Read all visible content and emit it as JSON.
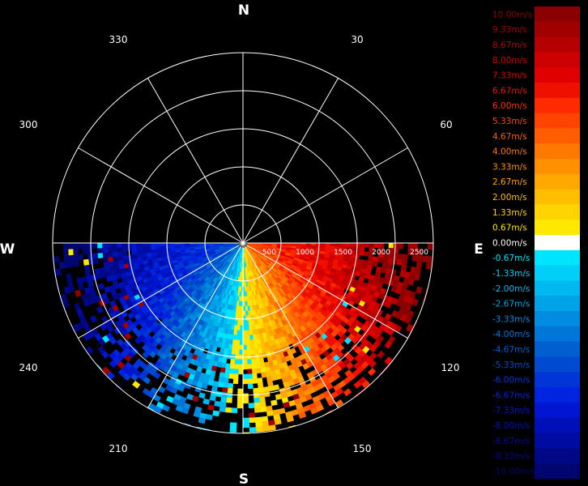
{
  "chart_data": {
    "type": "heatmap",
    "subtype": "polar radial-wind velocity display",
    "compass": {
      "north": "N",
      "south": "S",
      "east": "E",
      "west": "W"
    },
    "azimuth_labels": [
      "30",
      "60",
      "120",
      "150",
      "210",
      "240",
      "300",
      "330"
    ],
    "range_labels": [
      "500",
      "1000",
      "1500",
      "2000",
      "2500"
    ],
    "range_rings": [
      500,
      1000,
      1500,
      2000,
      2500
    ],
    "max_range": 2500,
    "spoke_step_deg": 30,
    "data_sector_deg": [
      90,
      270
    ],
    "velocity_range": [
      -10,
      10
    ],
    "description_sign": "positive toward east/south-east sector, negative toward west/south-west sector",
    "colorbar": [
      {
        "label": "10.00m/s",
        "value": 10.0,
        "color": "#8b0000"
      },
      {
        "label": "9.33m/s",
        "value": 9.33,
        "color": "#a00000"
      },
      {
        "label": "8.67m/s",
        "value": 8.67,
        "color": "#b50000"
      },
      {
        "label": "8.00m/s",
        "value": 8.0,
        "color": "#cc0000"
      },
      {
        "label": "7.33m/s",
        "value": 7.33,
        "color": "#e00000"
      },
      {
        "label": "6.67m/s",
        "value": 6.67,
        "color": "#f01000"
      },
      {
        "label": "6.00m/s",
        "value": 6.0,
        "color": "#ff2a00"
      },
      {
        "label": "5.33m/s",
        "value": 5.33,
        "color": "#ff4400"
      },
      {
        "label": "4.67m/s",
        "value": 4.67,
        "color": "#ff5e00"
      },
      {
        "label": "4.00m/s",
        "value": 4.0,
        "color": "#ff7800"
      },
      {
        "label": "3.33m/s",
        "value": 3.33,
        "color": "#ff9000"
      },
      {
        "label": "2.67m/s",
        "value": 2.67,
        "color": "#ffa800"
      },
      {
        "label": "2.00m/s",
        "value": 2.0,
        "color": "#ffbe00"
      },
      {
        "label": "1.33m/s",
        "value": 1.33,
        "color": "#ffd400"
      },
      {
        "label": "0.67m/s",
        "value": 0.67,
        "color": "#ffe800"
      },
      {
        "label": "0.00m/s",
        "value": 0.0,
        "color": "#ffffff"
      },
      {
        "label": "-0.67m/s",
        "value": -0.67,
        "color": "#00e5ff"
      },
      {
        "label": "-1.33m/s",
        "value": -1.33,
        "color": "#00d0f8"
      },
      {
        "label": "-2.00m/s",
        "value": -2.0,
        "color": "#00b8f0"
      },
      {
        "label": "-2.67m/s",
        "value": -2.67,
        "color": "#00a2e8"
      },
      {
        "label": "-3.33m/s",
        "value": -3.33,
        "color": "#008ce0"
      },
      {
        "label": "-4.00m/s",
        "value": -4.0,
        "color": "#0076d8"
      },
      {
        "label": "-4.67m/s",
        "value": -4.67,
        "color": "#0060d0"
      },
      {
        "label": "-5.33m/s",
        "value": -5.33,
        "color": "#004ad0"
      },
      {
        "label": "-6.00m/s",
        "value": -6.0,
        "color": "#0036d8"
      },
      {
        "label": "-6.67m/s",
        "value": -6.67,
        "color": "#0024e0"
      },
      {
        "label": "-7.33m/s",
        "value": -7.33,
        "color": "#0016d0"
      },
      {
        "label": "-8.00m/s",
        "value": -8.0,
        "color": "#0010b8"
      },
      {
        "label": "-8.67m/s",
        "value": -8.67,
        "color": "#000ca0"
      },
      {
        "label": "-9.33m/s",
        "value": -9.33,
        "color": "#000888"
      },
      {
        "label": "-10.00m/s",
        "value": -10.0,
        "color": "#000670"
      }
    ]
  }
}
